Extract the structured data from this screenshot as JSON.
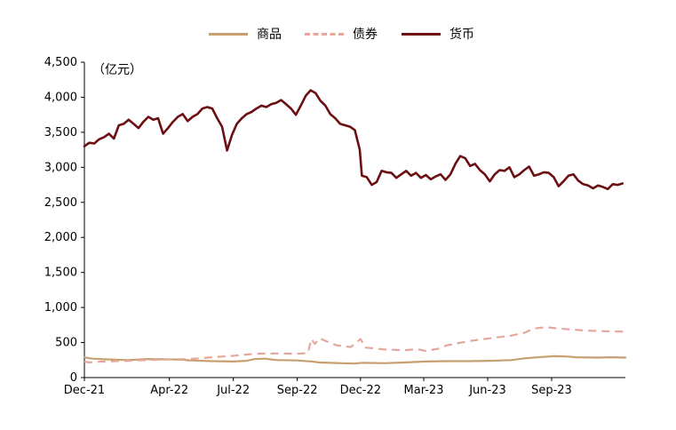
{
  "chart_data": {
    "type": "line",
    "unit_label": "（亿元）",
    "ylim": [
      0,
      4500
    ],
    "yticks": [
      0,
      500,
      1000,
      1500,
      2000,
      2500,
      3000,
      3500,
      4000,
      4500
    ],
    "ytick_labels": [
      "0",
      "500",
      "1,000",
      "1,500",
      "2,000",
      "2,500",
      "3,000",
      "3,500",
      "4,000",
      "4,500"
    ],
    "xlim": [
      "2021-12-01",
      "2024-01-10"
    ],
    "xticks": [
      "2021-12-01",
      "2022-04-01",
      "2022-07-01",
      "2022-09-30",
      "2022-12-29",
      "2023-03-29",
      "2023-06-28",
      "2023-09-27"
    ],
    "xtick_labels": [
      "Dec-21",
      "Apr-22",
      "Jul-22",
      "Sep-22",
      "Dec-22",
      "Mar-23",
      "Jun-23",
      "Sep-23"
    ],
    "legend_position": "top",
    "series": [
      {
        "name": "商品",
        "color": "#c8a070",
        "style": "solid",
        "points": [
          [
            "2021-12-01",
            290
          ],
          [
            "2021-12-05",
            280
          ],
          [
            "2021-12-12",
            270
          ],
          [
            "2022-01-01",
            260
          ],
          [
            "2022-02-01",
            250
          ],
          [
            "2022-03-01",
            265
          ],
          [
            "2022-04-01",
            260
          ],
          [
            "2022-04-20",
            255
          ],
          [
            "2022-05-01",
            245
          ],
          [
            "2022-06-01",
            235
          ],
          [
            "2022-07-01",
            230
          ],
          [
            "2022-07-20",
            240
          ],
          [
            "2022-08-01",
            265
          ],
          [
            "2022-08-15",
            270
          ],
          [
            "2022-09-01",
            250
          ],
          [
            "2022-09-30",
            245
          ],
          [
            "2022-10-20",
            230
          ],
          [
            "2022-11-01",
            215
          ],
          [
            "2022-12-01",
            205
          ],
          [
            "2022-12-20",
            200
          ],
          [
            "2023-01-01",
            210
          ],
          [
            "2023-02-01",
            205
          ],
          [
            "2023-03-01",
            215
          ],
          [
            "2023-04-01",
            230
          ],
          [
            "2023-05-01",
            235
          ],
          [
            "2023-06-01",
            235
          ],
          [
            "2023-07-01",
            240
          ],
          [
            "2023-08-01",
            250
          ],
          [
            "2023-08-20",
            275
          ],
          [
            "2023-09-15",
            295
          ],
          [
            "2023-10-01",
            305
          ],
          [
            "2023-10-20",
            300
          ],
          [
            "2023-11-01",
            290
          ],
          [
            "2023-12-01",
            285
          ],
          [
            "2023-12-20",
            290
          ],
          [
            "2024-01-10",
            285
          ]
        ]
      },
      {
        "name": "债券",
        "color": "#e5a79c",
        "style": "dashed",
        "points": [
          [
            "2021-12-01",
            230
          ],
          [
            "2021-12-08",
            215
          ],
          [
            "2021-12-15",
            225
          ],
          [
            "2022-01-01",
            230
          ],
          [
            "2022-02-01",
            240
          ],
          [
            "2022-03-01",
            250
          ],
          [
            "2022-04-01",
            260
          ],
          [
            "2022-05-01",
            265
          ],
          [
            "2022-06-01",
            290
          ],
          [
            "2022-07-01",
            310
          ],
          [
            "2022-08-01",
            340
          ],
          [
            "2022-09-01",
            345
          ],
          [
            "2022-09-30",
            340
          ],
          [
            "2022-10-15",
            350
          ],
          [
            "2022-10-20",
            550
          ],
          [
            "2022-10-25",
            480
          ],
          [
            "2022-11-01",
            560
          ],
          [
            "2022-11-10",
            520
          ],
          [
            "2022-11-25",
            460
          ],
          [
            "2022-12-15",
            435
          ],
          [
            "2022-12-29",
            550
          ],
          [
            "2023-01-05",
            430
          ],
          [
            "2023-02-01",
            400
          ],
          [
            "2023-03-01",
            390
          ],
          [
            "2023-03-20",
            405
          ],
          [
            "2023-04-01",
            380
          ],
          [
            "2023-04-20",
            415
          ],
          [
            "2023-05-01",
            460
          ],
          [
            "2023-06-01",
            520
          ],
          [
            "2023-07-01",
            560
          ],
          [
            "2023-08-01",
            600
          ],
          [
            "2023-08-20",
            640
          ],
          [
            "2023-09-01",
            700
          ],
          [
            "2023-09-20",
            720
          ],
          [
            "2023-10-01",
            705
          ],
          [
            "2023-10-20",
            690
          ],
          [
            "2023-11-15",
            670
          ],
          [
            "2023-12-15",
            660
          ],
          [
            "2024-01-10",
            655
          ]
        ]
      },
      {
        "name": "货币",
        "color": "#6b0f12",
        "style": "solid",
        "points": [
          [
            "2021-12-01",
            3300
          ],
          [
            "2021-12-08",
            3350
          ],
          [
            "2021-12-15",
            3340
          ],
          [
            "2021-12-22",
            3400
          ],
          [
            "2021-12-29",
            3430
          ],
          [
            "2022-01-05",
            3480
          ],
          [
            "2022-01-12",
            3410
          ],
          [
            "2022-01-19",
            3600
          ],
          [
            "2022-01-26",
            3620
          ],
          [
            "2022-02-02",
            3680
          ],
          [
            "2022-02-09",
            3620
          ],
          [
            "2022-02-16",
            3560
          ],
          [
            "2022-02-23",
            3650
          ],
          [
            "2022-03-02",
            3720
          ],
          [
            "2022-03-09",
            3680
          ],
          [
            "2022-03-16",
            3700
          ],
          [
            "2022-03-23",
            3480
          ],
          [
            "2022-03-30",
            3560
          ],
          [
            "2022-04-06",
            3650
          ],
          [
            "2022-04-13",
            3720
          ],
          [
            "2022-04-20",
            3760
          ],
          [
            "2022-04-27",
            3660
          ],
          [
            "2022-05-04",
            3720
          ],
          [
            "2022-05-11",
            3760
          ],
          [
            "2022-05-18",
            3840
          ],
          [
            "2022-05-25",
            3860
          ],
          [
            "2022-06-01",
            3840
          ],
          [
            "2022-06-08",
            3700
          ],
          [
            "2022-06-15",
            3580
          ],
          [
            "2022-06-22",
            3240
          ],
          [
            "2022-06-29",
            3460
          ],
          [
            "2022-07-06",
            3620
          ],
          [
            "2022-07-13",
            3700
          ],
          [
            "2022-07-20",
            3760
          ],
          [
            "2022-07-27",
            3790
          ],
          [
            "2022-08-03",
            3840
          ],
          [
            "2022-08-10",
            3880
          ],
          [
            "2022-08-17",
            3860
          ],
          [
            "2022-08-24",
            3900
          ],
          [
            "2022-08-31",
            3920
          ],
          [
            "2022-09-07",
            3960
          ],
          [
            "2022-09-14",
            3900
          ],
          [
            "2022-09-21",
            3840
          ],
          [
            "2022-09-28",
            3750
          ],
          [
            "2022-10-05",
            3880
          ],
          [
            "2022-10-12",
            4020
          ],
          [
            "2022-10-19",
            4100
          ],
          [
            "2022-10-26",
            4060
          ],
          [
            "2022-11-02",
            3950
          ],
          [
            "2022-11-09",
            3880
          ],
          [
            "2022-11-16",
            3760
          ],
          [
            "2022-11-23",
            3700
          ],
          [
            "2022-11-30",
            3620
          ],
          [
            "2022-12-07",
            3600
          ],
          [
            "2022-12-14",
            3580
          ],
          [
            "2022-12-21",
            3530
          ],
          [
            "2022-12-28",
            3250
          ],
          [
            "2022-12-31",
            2880
          ],
          [
            "2023-01-07",
            2860
          ],
          [
            "2023-01-14",
            2750
          ],
          [
            "2023-01-21",
            2790
          ],
          [
            "2023-01-28",
            2950
          ],
          [
            "2023-02-04",
            2930
          ],
          [
            "2023-02-11",
            2920
          ],
          [
            "2023-02-18",
            2850
          ],
          [
            "2023-02-25",
            2900
          ],
          [
            "2023-03-04",
            2950
          ],
          [
            "2023-03-11",
            2880
          ],
          [
            "2023-03-18",
            2920
          ],
          [
            "2023-03-25",
            2850
          ],
          [
            "2023-04-01",
            2890
          ],
          [
            "2023-04-08",
            2830
          ],
          [
            "2023-04-15",
            2870
          ],
          [
            "2023-04-22",
            2900
          ],
          [
            "2023-04-29",
            2820
          ],
          [
            "2023-05-06",
            2900
          ],
          [
            "2023-05-13",
            3050
          ],
          [
            "2023-05-20",
            3160
          ],
          [
            "2023-05-27",
            3130
          ],
          [
            "2023-06-03",
            3020
          ],
          [
            "2023-06-10",
            3050
          ],
          [
            "2023-06-17",
            2960
          ],
          [
            "2023-06-24",
            2900
          ],
          [
            "2023-07-01",
            2800
          ],
          [
            "2023-07-08",
            2900
          ],
          [
            "2023-07-15",
            2960
          ],
          [
            "2023-07-22",
            2950
          ],
          [
            "2023-07-29",
            3000
          ],
          [
            "2023-08-05",
            2860
          ],
          [
            "2023-08-12",
            2900
          ],
          [
            "2023-08-19",
            2960
          ],
          [
            "2023-08-26",
            3010
          ],
          [
            "2023-09-02",
            2880
          ],
          [
            "2023-09-09",
            2900
          ],
          [
            "2023-09-16",
            2930
          ],
          [
            "2023-09-23",
            2920
          ],
          [
            "2023-09-30",
            2860
          ],
          [
            "2023-10-07",
            2730
          ],
          [
            "2023-10-14",
            2800
          ],
          [
            "2023-10-21",
            2880
          ],
          [
            "2023-10-28",
            2900
          ],
          [
            "2023-11-04",
            2810
          ],
          [
            "2023-11-11",
            2760
          ],
          [
            "2023-11-18",
            2740
          ],
          [
            "2023-11-25",
            2700
          ],
          [
            "2023-12-02",
            2740
          ],
          [
            "2023-12-09",
            2720
          ],
          [
            "2023-12-16",
            2690
          ],
          [
            "2023-12-23",
            2760
          ],
          [
            "2023-12-30",
            2750
          ],
          [
            "2024-01-06",
            2770
          ]
        ]
      }
    ]
  }
}
